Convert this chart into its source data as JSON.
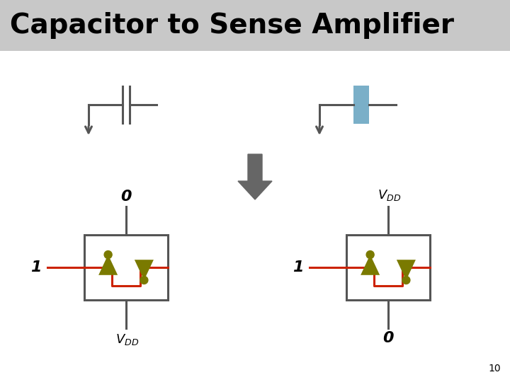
{
  "title": "Capacitor to Sense Amplifier",
  "title_bg": "#c8c8c8",
  "slide_bg": "#c8c8c8",
  "bg_color": "#c8c8c8",
  "white": "#ffffff",
  "gray": "#555555",
  "red": "#cc2200",
  "olive": "#7a7a00",
  "blue": "#7aafc8",
  "arrow_gray": "#666666",
  "page_num": "10",
  "title_fontsize": 28,
  "fig_w": 7.2,
  "fig_h": 5.4,
  "dpi": 100
}
